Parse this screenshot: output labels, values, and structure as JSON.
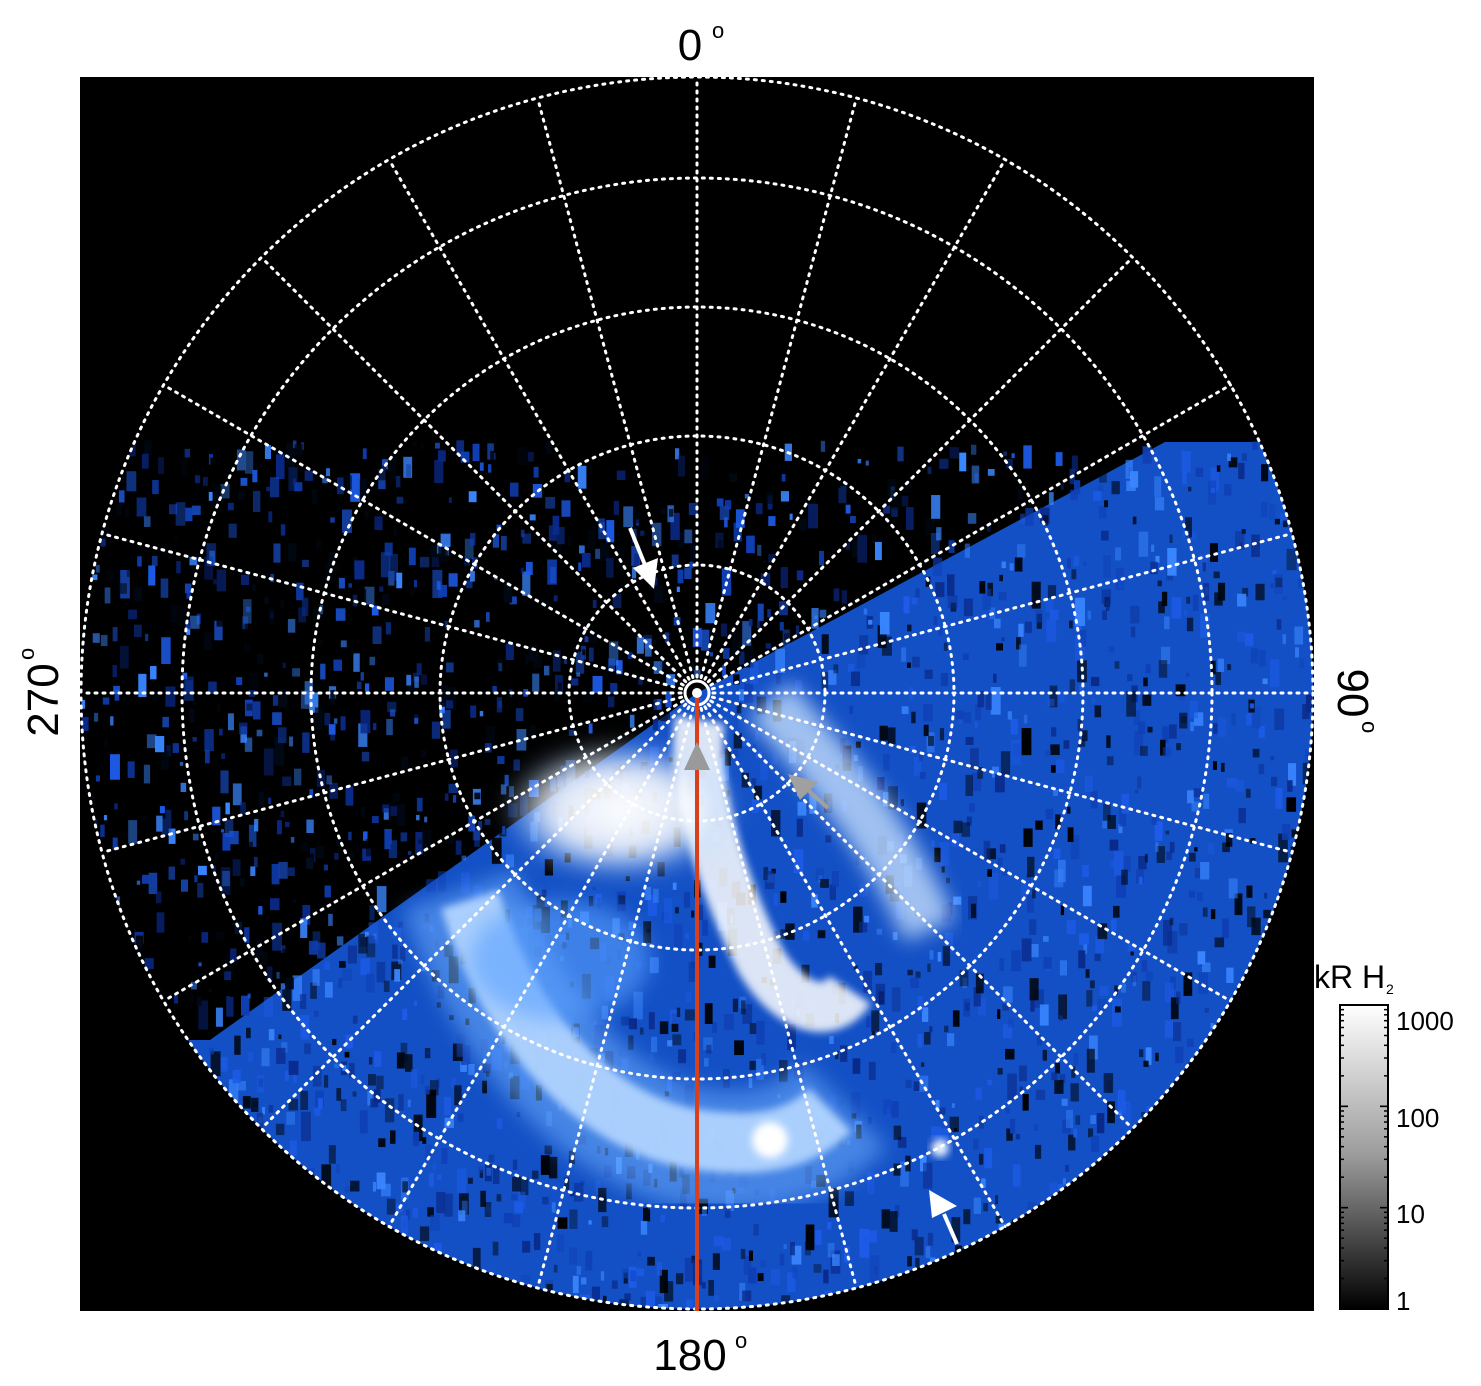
{
  "compass": {
    "top": "0",
    "right": "90",
    "bottom": "180",
    "left": "270",
    "degree_symbol": "o"
  },
  "colorbar": {
    "title": "kR H",
    "subscript": "2",
    "ticks": [
      "1000",
      "100",
      "10",
      "1"
    ],
    "scale": "log"
  },
  "colors": {
    "background": "#000000",
    "grid": "#ffffff",
    "emission": "#1f6fff",
    "emission_bright": "#ffffff",
    "meridian_line": "#e0401e",
    "arrow_white": "#ffffff",
    "arrow_gray": "#a0a0a0"
  },
  "icons": {
    "arrows": [
      "arrow-white-top",
      "arrow-gray-pole",
      "arrow-gray-mid",
      "arrow-white-bottom"
    ]
  }
}
